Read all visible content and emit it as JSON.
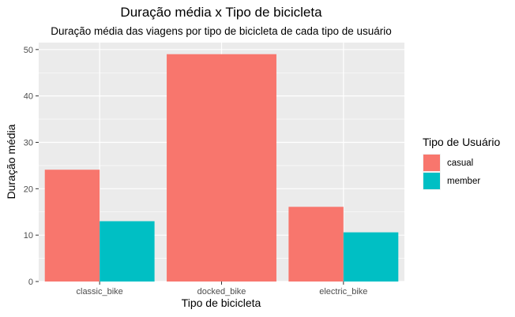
{
  "chart_data": {
    "type": "bar",
    "title": "Duração média x Tipo de bicicleta",
    "subtitle": "Duração média das viagens por tipo de bicicleta de cada tipo de usuário",
    "xlabel": "Tipo de bicicleta",
    "ylabel": "Duração média",
    "categories": [
      "classic_bike",
      "docked_bike",
      "electric_bike"
    ],
    "series": [
      {
        "name": "casual",
        "color": "#F8766D",
        "values": [
          24.1,
          49.0,
          16.1
        ]
      },
      {
        "name": "member",
        "color": "#00BFC4",
        "values": [
          13.0,
          null,
          10.6
        ]
      }
    ],
    "ylim": [
      0,
      51.5
    ],
    "yticks": [
      0,
      10,
      20,
      30,
      40,
      50
    ],
    "yticks_labels": [
      "0",
      "10",
      "20",
      "30",
      "40",
      "50"
    ],
    "grid": true,
    "panel_background": "#EBEBEB",
    "legend": {
      "title": "Tipo de Usuário",
      "position": "right"
    }
  }
}
